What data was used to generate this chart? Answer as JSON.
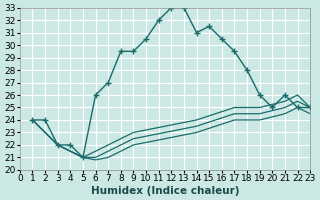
{
  "bg_color": "#cce8e5",
  "line_color": "#1a6b6b",
  "grid_color": "#ffffff",
  "xlabel": "Humidex (Indice chaleur)",
  "ylim": [
    20,
    33
  ],
  "xlim": [
    0,
    23
  ],
  "yticks": [
    20,
    21,
    22,
    23,
    24,
    25,
    26,
    27,
    28,
    29,
    30,
    31,
    32,
    33
  ],
  "xticks": [
    0,
    1,
    2,
    3,
    4,
    5,
    6,
    7,
    8,
    9,
    10,
    11,
    12,
    13,
    14,
    15,
    16,
    17,
    18,
    19,
    20,
    21,
    22,
    23
  ],
  "lines": [
    {
      "x": [
        1,
        2,
        3,
        4,
        5,
        6,
        7,
        8,
        9,
        10,
        11,
        12,
        13,
        14,
        15,
        16,
        17,
        18,
        19,
        20,
        21,
        22,
        23
      ],
      "y": [
        24,
        24,
        22,
        22,
        21,
        26,
        27,
        29.5,
        29.5,
        30.5,
        32,
        33,
        33,
        31,
        31.5,
        30.5,
        29.5,
        28,
        26,
        25,
        26,
        25,
        25
      ],
      "marker": true
    },
    {
      "x": [
        1,
        3,
        5,
        6,
        7,
        9,
        14,
        17,
        19,
        21,
        22,
        23
      ],
      "y": [
        24,
        22,
        21,
        21.5,
        22,
        23,
        24,
        25,
        25,
        25.5,
        26,
        25
      ],
      "marker": false
    },
    {
      "x": [
        1,
        3,
        5,
        6,
        7,
        9,
        14,
        17,
        19,
        21,
        22,
        23
      ],
      "y": [
        24,
        22,
        21,
        21,
        21.5,
        22.5,
        23.5,
        24.5,
        24.5,
        25,
        25.5,
        25
      ],
      "marker": false
    },
    {
      "x": [
        1,
        3,
        5,
        6,
        7,
        9,
        14,
        17,
        19,
        21,
        22,
        23
      ],
      "y": [
        24,
        22,
        21,
        20.8,
        21,
        22,
        23,
        24,
        24,
        24.5,
        25,
        24.5
      ],
      "marker": false
    }
  ]
}
